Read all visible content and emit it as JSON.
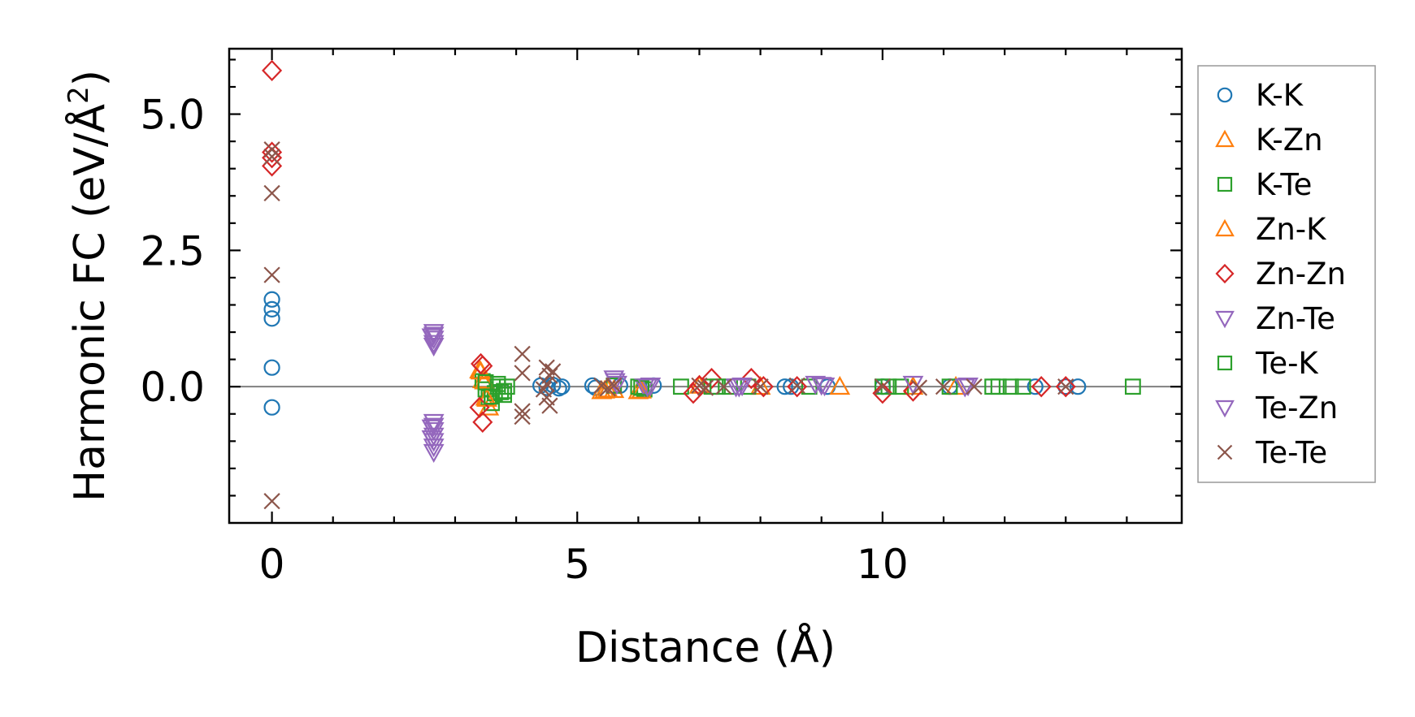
{
  "chart_data": {
    "type": "scatter",
    "title": "",
    "xlabel": "Distance (Å)",
    "ylabel_main": "Harmonic FC (eV/Å",
    "ylabel_sup": "2",
    "ylabel_close": ")",
    "xlim": [
      -0.7,
      14.9
    ],
    "ylim": [
      -2.5,
      6.2
    ],
    "x_ticks": [
      0,
      5,
      10
    ],
    "x_tick_labels": [
      "0",
      "5",
      "10"
    ],
    "x_minor_ticks": [
      1,
      2,
      3,
      4,
      6,
      7,
      8,
      9,
      11,
      12,
      13,
      14
    ],
    "y_ticks": [
      0.0,
      2.5,
      5.0
    ],
    "y_tick_labels": [
      "0.0",
      "2.5",
      "5.0"
    ],
    "y_minor_ticks": [
      -2.0,
      -1.5,
      -1.0,
      -0.5,
      0.5,
      1.0,
      1.5,
      2.0,
      3.0,
      3.5,
      4.0,
      4.5,
      5.5,
      6.0
    ],
    "zero_line": 0,
    "legend_position": "right",
    "series": [
      {
        "name": "K-K",
        "marker": "circle",
        "color": "#1f77b4",
        "points": [
          [
            0,
            1.6
          ],
          [
            0,
            1.42
          ],
          [
            0,
            1.25
          ],
          [
            0,
            0.35
          ],
          [
            0,
            -0.38
          ],
          [
            4.4,
            0.02
          ],
          [
            4.5,
            -0.02
          ],
          [
            4.6,
            0.03
          ],
          [
            4.7,
            -0.03
          ],
          [
            4.75,
            0.0
          ],
          [
            5.25,
            0.02
          ],
          [
            5.3,
            -0.02
          ],
          [
            5.7,
            0.02
          ],
          [
            6.25,
            0.02
          ],
          [
            8.4,
            0.0
          ],
          [
            8.5,
            0.0
          ],
          [
            9.1,
            0.0
          ],
          [
            10.0,
            0.0
          ],
          [
            11.1,
            0.0
          ],
          [
            12.5,
            0.0
          ],
          [
            13.0,
            0.0
          ],
          [
            13.2,
            0.0
          ]
        ]
      },
      {
        "name": "K-Zn",
        "marker": "triangle-up",
        "color": "#ff7f0e",
        "points": [
          [
            3.4,
            0.3
          ],
          [
            3.45,
            0.12
          ],
          [
            3.5,
            -0.2
          ],
          [
            3.55,
            -0.38
          ],
          [
            5.4,
            -0.08
          ],
          [
            5.5,
            -0.05
          ],
          [
            5.6,
            -0.06
          ],
          [
            6.0,
            -0.08
          ],
          [
            7.0,
            0.02
          ],
          [
            8.0,
            0.0
          ],
          [
            9.3,
            0.0
          ],
          [
            10.5,
            0.0
          ],
          [
            11.2,
            0.0
          ]
        ]
      },
      {
        "name": "K-Te",
        "marker": "square",
        "color": "#2ca02c",
        "points": [
          [
            3.45,
            0.1
          ],
          [
            3.5,
            -0.05
          ],
          [
            3.55,
            -0.2
          ],
          [
            3.6,
            -0.3
          ],
          [
            3.65,
            -0.12
          ],
          [
            3.7,
            0.05
          ],
          [
            3.75,
            -0.1
          ],
          [
            3.8,
            -0.15
          ],
          [
            3.85,
            0.0
          ],
          [
            5.6,
            0.02
          ],
          [
            6.0,
            0.0
          ],
          [
            6.1,
            -0.05
          ],
          [
            6.7,
            0.0
          ],
          [
            7.2,
            0.0
          ],
          [
            7.5,
            0.0
          ],
          [
            7.8,
            0.0
          ],
          [
            8.8,
            0.0
          ],
          [
            10.0,
            0.0
          ],
          [
            10.3,
            0.0
          ],
          [
            11.1,
            0.0
          ],
          [
            11.8,
            0.0
          ],
          [
            12.1,
            0.0
          ],
          [
            12.3,
            0.0
          ],
          [
            14.1,
            0.0
          ]
        ]
      },
      {
        "name": "Zn-K",
        "marker": "triangle-up",
        "color": "#ff7f0e",
        "points": [
          [
            3.42,
            0.28
          ],
          [
            3.48,
            0.1
          ],
          [
            3.52,
            -0.22
          ],
          [
            5.45,
            -0.07
          ],
          [
            6.05,
            -0.07
          ]
        ]
      },
      {
        "name": "Zn-Zn",
        "marker": "diamond",
        "color": "#d62728",
        "points": [
          [
            0,
            5.8
          ],
          [
            0,
            4.3
          ],
          [
            0,
            4.2
          ],
          [
            0,
            4.05
          ],
          [
            3.42,
            0.42
          ],
          [
            3.45,
            0.38
          ],
          [
            3.4,
            -0.38
          ],
          [
            3.45,
            -0.65
          ],
          [
            6.9,
            -0.12
          ],
          [
            7.0,
            0.02
          ],
          [
            7.2,
            0.15
          ],
          [
            7.85,
            0.15
          ],
          [
            8.05,
            0.0
          ],
          [
            8.6,
            0.0
          ],
          [
            10.0,
            -0.12
          ],
          [
            10.5,
            -0.08
          ],
          [
            12.6,
            0.0
          ],
          [
            13.0,
            0.0
          ]
        ]
      },
      {
        "name": "Zn-Te",
        "marker": "triangle-down",
        "color": "#9467bd",
        "points": [
          [
            2.65,
            1.0
          ],
          [
            2.65,
            0.95
          ],
          [
            2.65,
            0.88
          ],
          [
            2.65,
            0.8
          ],
          [
            2.65,
            0.75
          ],
          [
            2.65,
            -0.65
          ],
          [
            2.65,
            -0.72
          ],
          [
            2.65,
            -0.8
          ],
          [
            2.65,
            -0.9
          ],
          [
            2.65,
            -1.0
          ],
          [
            2.65,
            -1.1
          ],
          [
            2.65,
            -1.2
          ],
          [
            5.6,
            0.15
          ],
          [
            5.65,
            0.05
          ],
          [
            6.1,
            0.0
          ],
          [
            6.2,
            0.02
          ],
          [
            7.6,
            0.0
          ],
          [
            7.7,
            0.02
          ],
          [
            8.9,
            0.05
          ],
          [
            9.05,
            0.02
          ],
          [
            10.5,
            0.05
          ],
          [
            11.4,
            0.02
          ]
        ]
      },
      {
        "name": "Te-K",
        "marker": "square",
        "color": "#2ca02c",
        "points": [
          [
            3.5,
            0.08
          ],
          [
            3.6,
            -0.18
          ],
          [
            3.7,
            0.0
          ],
          [
            3.8,
            -0.08
          ],
          [
            6.05,
            -0.02
          ],
          [
            7.3,
            0.0
          ],
          [
            10.1,
            0.0
          ],
          [
            11.9,
            0.0
          ]
        ]
      },
      {
        "name": "Te-Zn",
        "marker": "triangle-down",
        "color": "#9467bd",
        "points": [
          [
            2.62,
            0.92
          ],
          [
            2.62,
            -0.75
          ],
          [
            2.62,
            -0.95
          ],
          [
            5.62,
            0.1
          ],
          [
            6.15,
            0.0
          ],
          [
            7.65,
            0.0
          ],
          [
            9.0,
            0.03
          ],
          [
            11.35,
            0.0
          ]
        ]
      },
      {
        "name": "Te-Te",
        "marker": "x",
        "color": "#8c564b",
        "points": [
          [
            0,
            4.35
          ],
          [
            0,
            4.22
          ],
          [
            0,
            3.55
          ],
          [
            0,
            2.05
          ],
          [
            0,
            -2.1
          ],
          [
            4.1,
            0.6
          ],
          [
            4.1,
            0.25
          ],
          [
            4.1,
            -0.45
          ],
          [
            4.1,
            -0.55
          ],
          [
            4.5,
            0.35
          ],
          [
            4.55,
            0.2
          ],
          [
            4.5,
            0.05
          ],
          [
            4.45,
            -0.05
          ],
          [
            4.5,
            -0.2
          ],
          [
            4.55,
            -0.35
          ],
          [
            4.6,
            0.28
          ],
          [
            5.4,
            0.02
          ],
          [
            5.5,
            -0.03
          ],
          [
            5.6,
            0.02
          ],
          [
            7.0,
            0.02
          ],
          [
            7.1,
            -0.02
          ],
          [
            7.4,
            0.0
          ],
          [
            8.0,
            0.0
          ],
          [
            8.6,
            0.02
          ],
          [
            10.0,
            0.0
          ],
          [
            10.6,
            -0.02
          ],
          [
            11.0,
            0.0
          ],
          [
            11.5,
            0.0
          ],
          [
            13.0,
            0.0
          ]
        ]
      }
    ]
  }
}
